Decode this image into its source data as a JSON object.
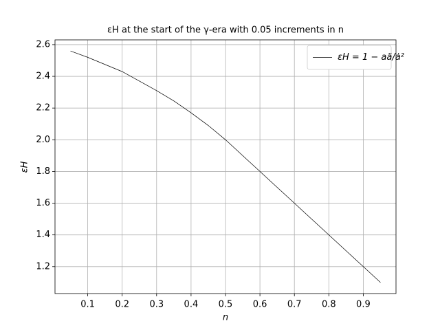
{
  "chart_data": {
    "type": "line",
    "title": "εH at the start of the γ-era with 0.05 increments in n",
    "x_label": "n",
    "y_label": "εH",
    "x": [
      0.05,
      0.1,
      0.15,
      0.2,
      0.25,
      0.3,
      0.35,
      0.4,
      0.45,
      0.5,
      0.55,
      0.6,
      0.65,
      0.7,
      0.75,
      0.8,
      0.85,
      0.9,
      0.95
    ],
    "series": [
      {
        "name": "εH = 1 − aä/ȧ²",
        "color": "#000000",
        "values": [
          2.56,
          2.52,
          2.475,
          2.43,
          2.37,
          2.31,
          2.245,
          2.17,
          2.09,
          2.0,
          1.9,
          1.8,
          1.7,
          1.6,
          1.5,
          1.4,
          1.3,
          1.2,
          1.1
        ]
      }
    ],
    "xlim": [
      0.005,
      0.995
    ],
    "ylim": [
      1.03,
      2.63
    ],
    "xticks": [
      0.1,
      0.2,
      0.3,
      0.4,
      0.5,
      0.6,
      0.7,
      0.8,
      0.9
    ],
    "yticks": [
      1.2,
      1.4,
      1.6,
      1.8,
      {
        "value": 2,
        "label": "2.0"
      },
      2.2,
      2.4,
      2.6
    ],
    "grid": true,
    "legend": "upper right"
  }
}
